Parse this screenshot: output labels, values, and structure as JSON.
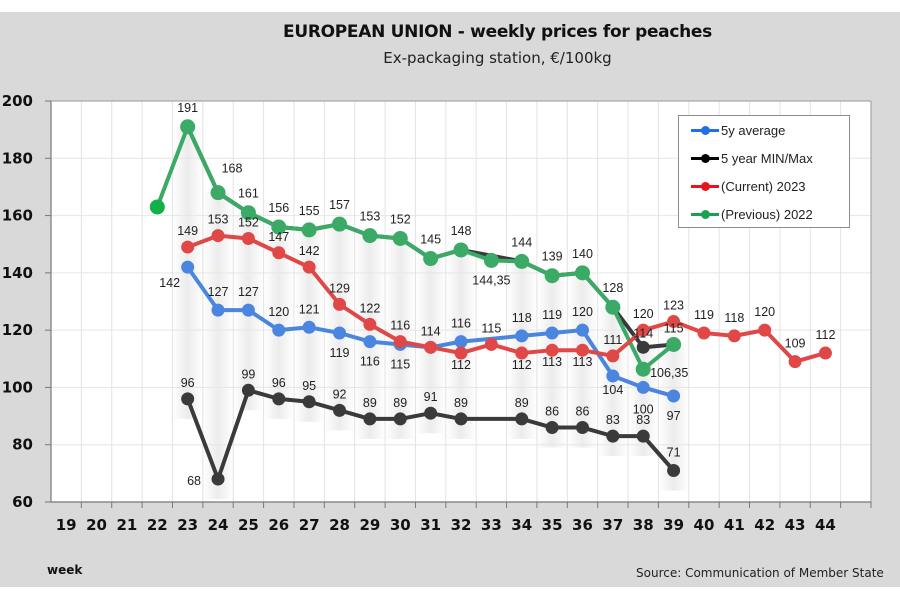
{
  "chart_data": {
    "type": "line",
    "title": "EUROPEAN UNION  -  weekly prices for peaches",
    "subtitle": "Ex-packaging station, €/100kg",
    "xlabel": "week",
    "ylabel": "",
    "source": "Source: Communication  of Member State",
    "categories": [
      "19",
      "20",
      "21",
      "22",
      "23",
      "24",
      "25",
      "26",
      "27",
      "28",
      "29",
      "30",
      "31",
      "32",
      "33",
      "34",
      "35",
      "36",
      "37",
      "38",
      "39",
      "40",
      "41",
      "42",
      "43",
      "44"
    ],
    "ylim": [
      60,
      200
    ],
    "yticks": [
      60,
      80,
      100,
      120,
      140,
      160,
      180,
      200
    ],
    "grid": true,
    "legend_position": "top-right",
    "series": [
      {
        "name": "5y average",
        "color": "#4a86e0",
        "legend_color": "#1f6fe8",
        "values": {
          "23": 142,
          "24": 127,
          "25": 127,
          "26": 120,
          "27": 121,
          "28": 119,
          "29": 116,
          "30": 115,
          "31": 114,
          "32": 116,
          "34": 118,
          "35": 119,
          "36": 120,
          "37": 104,
          "38": 100,
          "39": 97
        },
        "labels": {
          "23": "142",
          "24": "127",
          "25": "127",
          "26": "120",
          "27": "121",
          "28": "119",
          "29": "116",
          "30": "115",
          "31": "114",
          "32": "116",
          "34": "118",
          "35": "119",
          "36": "120",
          "37": "104",
          "38": "100",
          "39": "97"
        }
      },
      {
        "name": "5 year MIN",
        "color": "#3a3a3a",
        "legend_color": "#000000",
        "values": {
          "23": 96,
          "24": 68,
          "25": 99,
          "26": 96,
          "27": 95,
          "28": 92,
          "29": 89,
          "30": 89,
          "31": 91,
          "32": 89,
          "34": 89,
          "35": 86,
          "36": 86,
          "37": 83,
          "38": 83,
          "39": 71
        },
        "labels": {
          "23": "96",
          "24": "68",
          "25": "99",
          "26": "96",
          "27": "95",
          "28": "92",
          "29": "89",
          "30": "89",
          "31": "91",
          "32": "89",
          "34": "89",
          "35": "86",
          "36": "86",
          "37": "83",
          "38": "83",
          "39": "71"
        }
      },
      {
        "name": "5 year MAX",
        "color": "#3a3a3a",
        "legend_color": "#000000",
        "values": {
          "23": 191,
          "24": 168,
          "25": 161,
          "26": 156,
          "27": 155,
          "28": 157,
          "29": 153,
          "30": 152,
          "31": 145,
          "32": 148,
          "34": 144,
          "35": 139,
          "36": 140,
          "37": 128,
          "38": 114,
          "39": 115
        },
        "labels": {
          "38": "114"
        }
      },
      {
        "name": "(Current) 2023",
        "color": "#e04848",
        "legend_color": "#e8141c",
        "values": {
          "23": 149,
          "24": 153,
          "25": 152,
          "26": 147,
          "27": 142,
          "28": 129,
          "29": 122,
          "30": 116,
          "31": 114,
          "32": 112,
          "33": 115,
          "34": 112,
          "35": 113,
          "36": 113,
          "37": 111,
          "38": 120,
          "39": 123,
          "40": 119,
          "41": 118,
          "42": 120,
          "43": 109,
          "44": 112
        },
        "labels": {
          "23": "149",
          "24": "153",
          "25": "152",
          "26": "147",
          "27": "142",
          "28": "129",
          "29": "122",
          "30": "116",
          "31": "114",
          "32": "112",
          "33": "115",
          "34": "112",
          "35": "113",
          "36": "113",
          "37": "111",
          "38": "120",
          "39": "123",
          "40": "119",
          "41": "118",
          "42": "120",
          "43": "109",
          "44": "112"
        }
      },
      {
        "name": "(Previous) 2022",
        "color": "#3aaa66",
        "legend_color": "#1aa050",
        "values": {
          "22": 163,
          "23": 191,
          "24": 168,
          "25": 161,
          "26": 156,
          "27": 155,
          "28": 157,
          "29": 153,
          "30": 152,
          "31": 145,
          "32": 148,
          "33": 144.35,
          "34": 144,
          "35": 139,
          "36": 140,
          "37": 128,
          "38": 106.35,
          "39": 115
        },
        "labels": {
          "23": "191",
          "24": "168",
          "25": "161",
          "26": "156",
          "27": "155",
          "28": "157",
          "29": "153",
          "30": "152",
          "31": "145",
          "32": "148",
          "33": "144,35",
          "34": "144",
          "35": "139",
          "36": "140",
          "37": "128",
          "38": "106,35",
          "39": "115"
        }
      }
    ],
    "legend": [
      {
        "label": "5y average",
        "color": "#1f6fe8"
      },
      {
        "label": "5 year MIN/Max",
        "color": "#000000"
      },
      {
        "label": " (Current) 2023",
        "color": "#e8141c"
      },
      {
        "label": "(Previous) 2022",
        "color": "#1aa050"
      }
    ]
  }
}
